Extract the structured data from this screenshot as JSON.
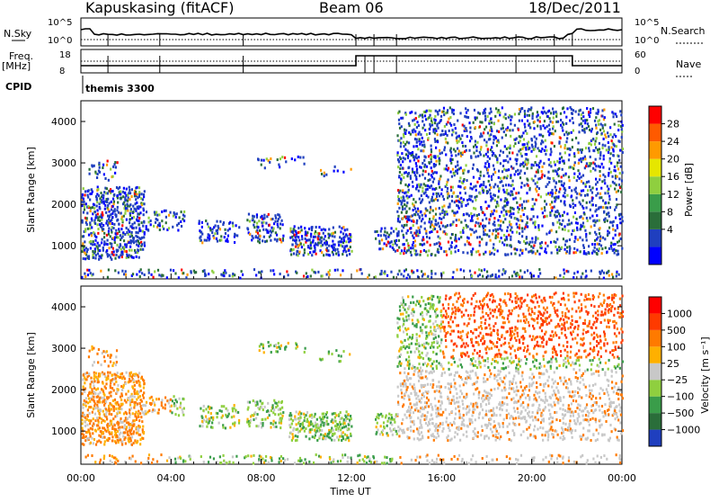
{
  "header": {
    "station": "Kapuskasing (fitACF)",
    "beam": "Beam 06",
    "date": "18/Dec/2011"
  },
  "top_panel": {
    "left_label_1": "N.Sky",
    "left_label_2": "Freq.",
    "left_label_3": "[MHz]",
    "left_label_4": "CPID",
    "right_label_1": "N.Search",
    "right_label_2": "Nave",
    "left_ticks_a": [
      "10^5",
      "10^0"
    ],
    "left_ticks_b": [
      "18",
      "8"
    ],
    "right_ticks_a": [
      "10^5",
      "10^0"
    ],
    "right_ticks_b": [
      "60",
      "0"
    ],
    "cpid_text": "themis 3300"
  },
  "chart_data": [
    {
      "type": "heatmap",
      "name": "power",
      "ylabel": "Slant Range [km]",
      "xlim": [
        0,
        24
      ],
      "ylim": [
        200,
        4500
      ],
      "yticks": [
        "4000",
        "3000",
        "2000",
        "1000"
      ],
      "colorbar_label": "Power [dB]",
      "colorbar_ticks": [
        "28",
        "24",
        "20",
        "16",
        "12",
        "8",
        "4"
      ],
      "colorbar_colors": [
        "#0000ff",
        "#1f3fbf",
        "#2a6e3a",
        "#3a9d4a",
        "#8fcf3f",
        "#e6e600",
        "#ff9a00",
        "#ff5a00",
        "#ff0000"
      ]
    },
    {
      "type": "heatmap",
      "name": "velocity",
      "ylabel": "Slant Range [km]",
      "xlabel": "Time UT",
      "xlim": [
        0,
        24
      ],
      "ylim": [
        200,
        4500
      ],
      "yticks": [
        "4000",
        "3000",
        "2000",
        "1000"
      ],
      "xticks": [
        "00:00",
        "04:00",
        "08:00",
        "12:00",
        "16:00",
        "20:00",
        "00:00"
      ],
      "colorbar_label": "Velocity [m s⁻¹]",
      "colorbar_ticks": [
        "1000",
        "500",
        "100",
        "25",
        "−25",
        "−100",
        "−500",
        "−1000"
      ],
      "colorbar_colors": [
        "#1f3fbf",
        "#2a6e3a",
        "#3a9d4a",
        "#8fcf3f",
        "#c8c8c8",
        "#ffb000",
        "#ff7a00",
        "#ff3a00",
        "#ff0000"
      ]
    }
  ]
}
